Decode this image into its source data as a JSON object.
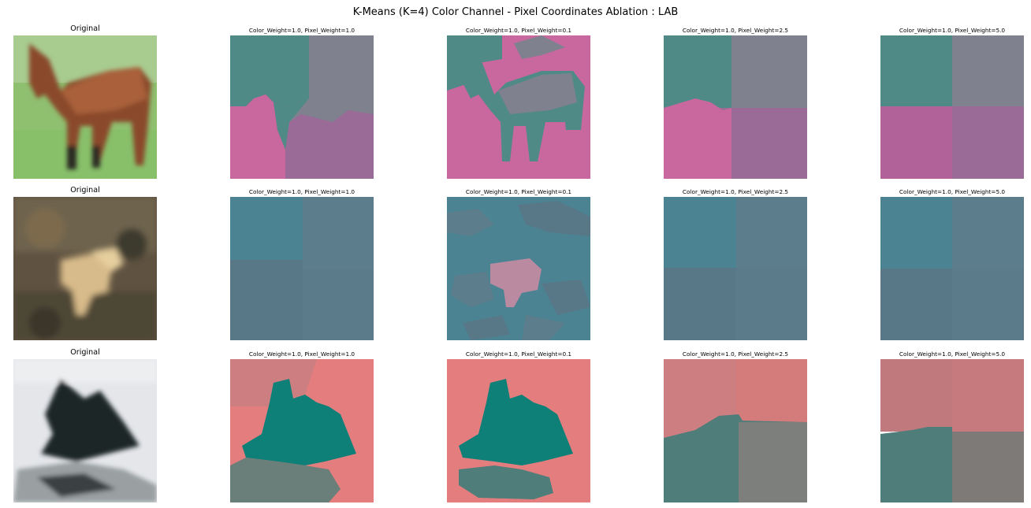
{
  "figure": {
    "title": "K-Means (K=4) Color Channel - Pixel Coordinates Ablation : LAB"
  },
  "rows": [
    {
      "subject": "horse",
      "panels": [
        {
          "title": "Original"
        },
        {
          "title": "Color_Weight=1.0, Pixel_Weight=1.0"
        },
        {
          "title": "Color_Weight=1.0, Pixel_Weight=0.1"
        },
        {
          "title": "Color_Weight=1.0, Pixel_Weight=2.5"
        },
        {
          "title": "Color_Weight=1.0, Pixel_Weight=5.0"
        }
      ]
    },
    {
      "subject": "deer",
      "panels": [
        {
          "title": "Original"
        },
        {
          "title": "Color_Weight=1.0, Pixel_Weight=1.0"
        },
        {
          "title": "Color_Weight=1.0, Pixel_Weight=0.1"
        },
        {
          "title": "Color_Weight=1.0, Pixel_Weight=2.5"
        },
        {
          "title": "Color_Weight=1.0, Pixel_Weight=5.0"
        }
      ]
    },
    {
      "subject": "plane",
      "panels": [
        {
          "title": "Original"
        },
        {
          "title": "Color_Weight=1.0, Pixel_Weight=1.0"
        },
        {
          "title": "Color_Weight=1.0, Pixel_Weight=0.1"
        },
        {
          "title": "Color_Weight=1.0, Pixel_Weight=2.5"
        },
        {
          "title": "Color_Weight=1.0, Pixel_Weight=5.0"
        }
      ]
    }
  ],
  "colors": {
    "horse_teal": "#4f8a86",
    "horse_gray": "#7f818f",
    "horse_pink": "#c9679f",
    "horse_mauve": "#9a6b96",
    "deer_teal": "#4b8392",
    "deer_slate": "#5b7d8c",
    "deer_blue": "#587888",
    "deer_pink": "#b98aa0",
    "plane_salmon": "#e47e7e",
    "plane_rose": "#cc7e80",
    "plane_teal": "#0f8078",
    "plane_gray": "#6a7e7a"
  }
}
